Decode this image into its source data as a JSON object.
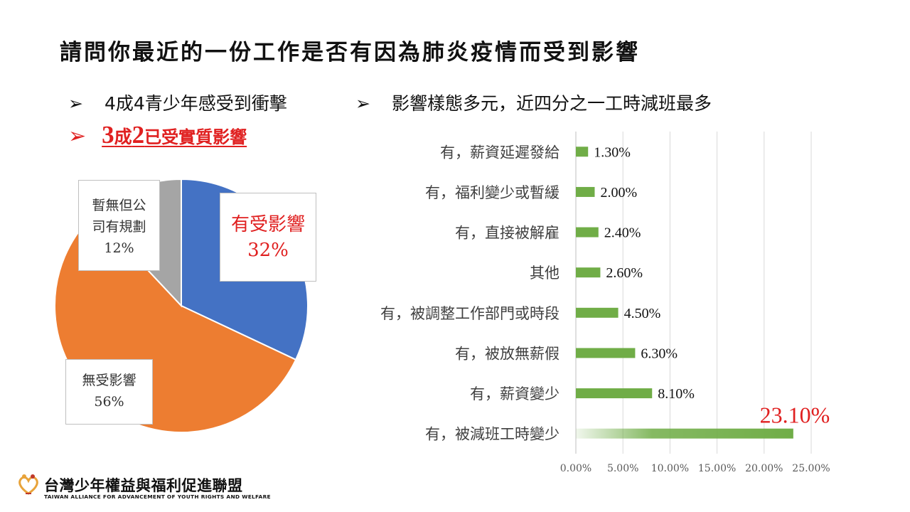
{
  "slide": {
    "title": "請問你最近的一份工作是否有因為肺炎疫情而受到影響",
    "bullet_arrow": "➢",
    "bullet1": "4成4青少年感受到衝擊",
    "bullet2": "影響樣態多元，近四分之一工時減班最多",
    "highlight": {
      "num1": "3",
      "unit1": "成",
      "num2": "2",
      "rest": "已受實質影響"
    }
  },
  "footer": {
    "org_name": "台灣少年權益與福利促進聯盟",
    "org_en": "TAIWAN ALLIANCE FOR ADVANCEMENT OF YOUTH RIGHTS AND WELFARE"
  },
  "colors": {
    "pie_blue": "#4472c4",
    "pie_orange": "#ed7d31",
    "pie_gray": "#a5a5a5",
    "bar_green": "#70ad47",
    "highlight_red": "#e02020"
  },
  "chart_data": [
    {
      "type": "pie",
      "slices": [
        {
          "label_lines": [
            "有受影響"
          ],
          "value_text": "32%",
          "value": 32
        },
        {
          "label_lines": [
            "無受影響"
          ],
          "value_text": "56%",
          "value": 56
        },
        {
          "label_lines": [
            "暫無但公",
            "司有規劃"
          ],
          "value_text": "12%",
          "value": 12
        }
      ]
    },
    {
      "type": "bar",
      "orientation": "horizontal",
      "categories": [
        "有，薪資延遲發給",
        "有，福利變少或暫緩",
        "有，直接被解雇",
        "其他",
        "有，被調整工作部門或時段",
        "有，被放無薪假",
        "有，薪資變少",
        "有，被減班工時變少"
      ],
      "values": [
        1.3,
        2.0,
        2.4,
        2.6,
        4.5,
        6.3,
        8.1,
        23.1
      ],
      "value_labels": [
        "1.30%",
        "2.00%",
        "2.40%",
        "2.60%",
        "4.50%",
        "6.30%",
        "8.10%",
        "23.10%"
      ],
      "xlim": [
        0,
        25
      ],
      "xticks": [
        "0.00%",
        "5.00%",
        "10.00%",
        "15.00%",
        "20.00%",
        "25.00%"
      ],
      "grid": true
    }
  ]
}
